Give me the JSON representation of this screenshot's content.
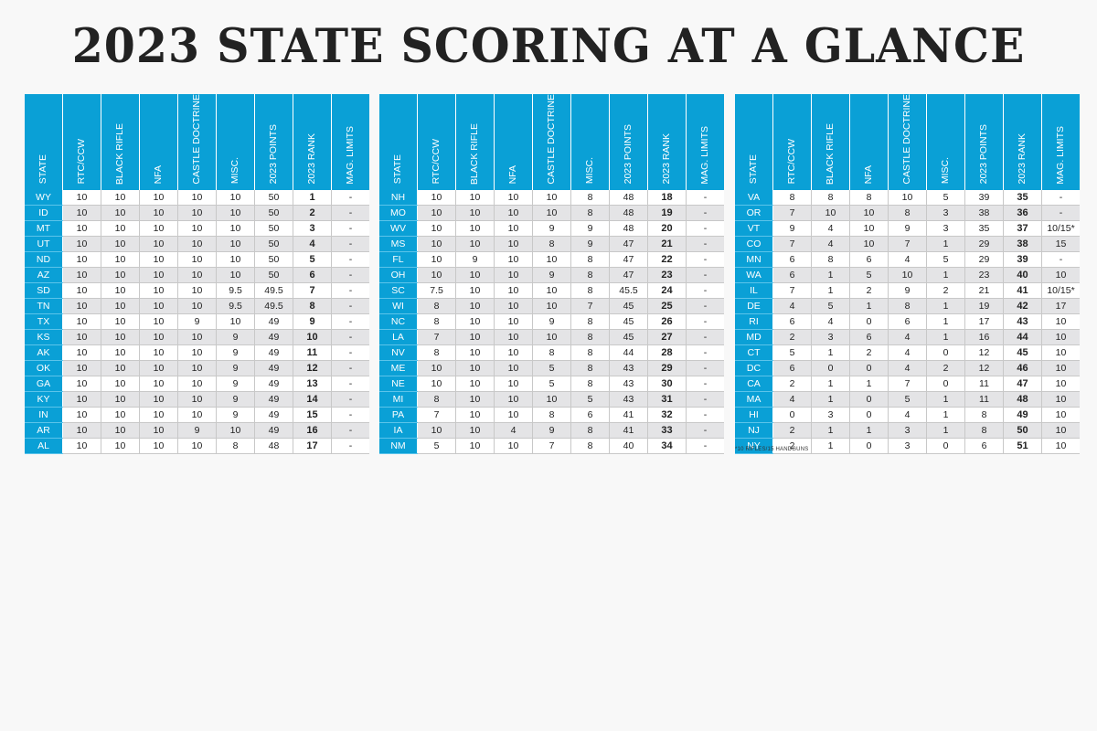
{
  "title": "2023 STATE SCORING AT A GLANCE",
  "columns": [
    "STATE",
    "RTC/CCW",
    "BLACK RIFLE",
    "NFA",
    "CASTLE DOCTRINE",
    "MISC.",
    "2023 POINTS",
    "2023 RANK",
    "MAG. LIMITS"
  ],
  "tables": [
    {
      "rows": [
        [
          "WY",
          "10",
          "10",
          "10",
          "10",
          "10",
          "50",
          "1",
          "-"
        ],
        [
          "ID",
          "10",
          "10",
          "10",
          "10",
          "10",
          "50",
          "2",
          "-"
        ],
        [
          "MT",
          "10",
          "10",
          "10",
          "10",
          "10",
          "50",
          "3",
          "-"
        ],
        [
          "UT",
          "10",
          "10",
          "10",
          "10",
          "10",
          "50",
          "4",
          "-"
        ],
        [
          "ND",
          "10",
          "10",
          "10",
          "10",
          "10",
          "50",
          "5",
          "-"
        ],
        [
          "AZ",
          "10",
          "10",
          "10",
          "10",
          "10",
          "50",
          "6",
          "-"
        ],
        [
          "SD",
          "10",
          "10",
          "10",
          "10",
          "9.5",
          "49.5",
          "7",
          "-"
        ],
        [
          "TN",
          "10",
          "10",
          "10",
          "10",
          "9.5",
          "49.5",
          "8",
          "-"
        ],
        [
          "TX",
          "10",
          "10",
          "10",
          "9",
          "10",
          "49",
          "9",
          "-"
        ],
        [
          "KS",
          "10",
          "10",
          "10",
          "10",
          "9",
          "49",
          "10",
          "-"
        ],
        [
          "AK",
          "10",
          "10",
          "10",
          "10",
          "9",
          "49",
          "11",
          "-"
        ],
        [
          "OK",
          "10",
          "10",
          "10",
          "10",
          "9",
          "49",
          "12",
          "-"
        ],
        [
          "GA",
          "10",
          "10",
          "10",
          "10",
          "9",
          "49",
          "13",
          "-"
        ],
        [
          "KY",
          "10",
          "10",
          "10",
          "10",
          "9",
          "49",
          "14",
          "-"
        ],
        [
          "IN",
          "10",
          "10",
          "10",
          "10",
          "9",
          "49",
          "15",
          "-"
        ],
        [
          "AR",
          "10",
          "10",
          "10",
          "9",
          "10",
          "49",
          "16",
          "-"
        ],
        [
          "AL",
          "10",
          "10",
          "10",
          "10",
          "8",
          "48",
          "17",
          "-"
        ]
      ]
    },
    {
      "rows": [
        [
          "NH",
          "10",
          "10",
          "10",
          "10",
          "8",
          "48",
          "18",
          "-"
        ],
        [
          "MO",
          "10",
          "10",
          "10",
          "10",
          "8",
          "48",
          "19",
          "-"
        ],
        [
          "WV",
          "10",
          "10",
          "10",
          "9",
          "9",
          "48",
          "20",
          "-"
        ],
        [
          "MS",
          "10",
          "10",
          "10",
          "8",
          "9",
          "47",
          "21",
          "-"
        ],
        [
          "FL",
          "10",
          "9",
          "10",
          "10",
          "8",
          "47",
          "22",
          "-"
        ],
        [
          "OH",
          "10",
          "10",
          "10",
          "9",
          "8",
          "47",
          "23",
          "-"
        ],
        [
          "SC",
          "7.5",
          "10",
          "10",
          "10",
          "8",
          "45.5",
          "24",
          "-"
        ],
        [
          "WI",
          "8",
          "10",
          "10",
          "10",
          "7",
          "45",
          "25",
          "-"
        ],
        [
          "NC",
          "8",
          "10",
          "10",
          "9",
          "8",
          "45",
          "26",
          "-"
        ],
        [
          "LA",
          "7",
          "10",
          "10",
          "10",
          "8",
          "45",
          "27",
          "-"
        ],
        [
          "NV",
          "8",
          "10",
          "10",
          "8",
          "8",
          "44",
          "28",
          "-"
        ],
        [
          "ME",
          "10",
          "10",
          "10",
          "5",
          "8",
          "43",
          "29",
          "-"
        ],
        [
          "NE",
          "10",
          "10",
          "10",
          "5",
          "8",
          "43",
          "30",
          "-"
        ],
        [
          "MI",
          "8",
          "10",
          "10",
          "10",
          "5",
          "43",
          "31",
          "-"
        ],
        [
          "PA",
          "7",
          "10",
          "10",
          "8",
          "6",
          "41",
          "32",
          "-"
        ],
        [
          "IA",
          "10",
          "10",
          "4",
          "9",
          "8",
          "41",
          "33",
          "-"
        ],
        [
          "NM",
          "5",
          "10",
          "10",
          "7",
          "8",
          "40",
          "34",
          "-"
        ]
      ]
    },
    {
      "rows": [
        [
          "VA",
          "8",
          "8",
          "8",
          "10",
          "5",
          "39",
          "35",
          "-"
        ],
        [
          "OR",
          "7",
          "10",
          "10",
          "8",
          "3",
          "38",
          "36",
          "-"
        ],
        [
          "VT",
          "9",
          "4",
          "10",
          "9",
          "3",
          "35",
          "37",
          "10/15*"
        ],
        [
          "CO",
          "7",
          "4",
          "10",
          "7",
          "1",
          "29",
          "38",
          "15"
        ],
        [
          "MN",
          "6",
          "8",
          "6",
          "4",
          "5",
          "29",
          "39",
          "-"
        ],
        [
          "WA",
          "6",
          "1",
          "5",
          "10",
          "1",
          "23",
          "40",
          "10"
        ],
        [
          "IL",
          "7",
          "1",
          "2",
          "9",
          "2",
          "21",
          "41",
          "10/15*"
        ],
        [
          "DE",
          "4",
          "5",
          "1",
          "8",
          "1",
          "19",
          "42",
          "17"
        ],
        [
          "RI",
          "6",
          "4",
          "0",
          "6",
          "1",
          "17",
          "43",
          "10"
        ],
        [
          "MD",
          "2",
          "3",
          "6",
          "4",
          "1",
          "16",
          "44",
          "10"
        ],
        [
          "CT",
          "5",
          "1",
          "2",
          "4",
          "0",
          "12",
          "45",
          "10"
        ],
        [
          "DC",
          "6",
          "0",
          "0",
          "4",
          "2",
          "12",
          "46",
          "10"
        ],
        [
          "CA",
          "2",
          "1",
          "1",
          "7",
          "0",
          "11",
          "47",
          "10"
        ],
        [
          "MA",
          "4",
          "1",
          "0",
          "5",
          "1",
          "11",
          "48",
          "10"
        ],
        [
          "HI",
          "0",
          "3",
          "0",
          "4",
          "1",
          "8",
          "49",
          "10"
        ],
        [
          "NJ",
          "2",
          "1",
          "1",
          "3",
          "1",
          "8",
          "50",
          "10"
        ],
        [
          "NY",
          "2",
          "1",
          "0",
          "3",
          "0",
          "6",
          "51",
          "10"
        ]
      ]
    }
  ],
  "footnote": "*10 RIFLES/15 HANDGUNS"
}
